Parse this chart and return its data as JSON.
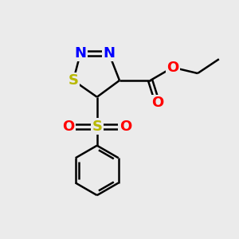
{
  "bg_color": "#ebebeb",
  "atom_colors": {
    "N": "#0000ff",
    "S_ring": "#b8b800",
    "S_sulfonyl": "#b8b800",
    "O": "#ff0000",
    "C": "#000000"
  },
  "bond_color": "#000000",
  "bond_width": 1.8,
  "figsize": [
    3.0,
    3.0
  ],
  "dpi": 100
}
